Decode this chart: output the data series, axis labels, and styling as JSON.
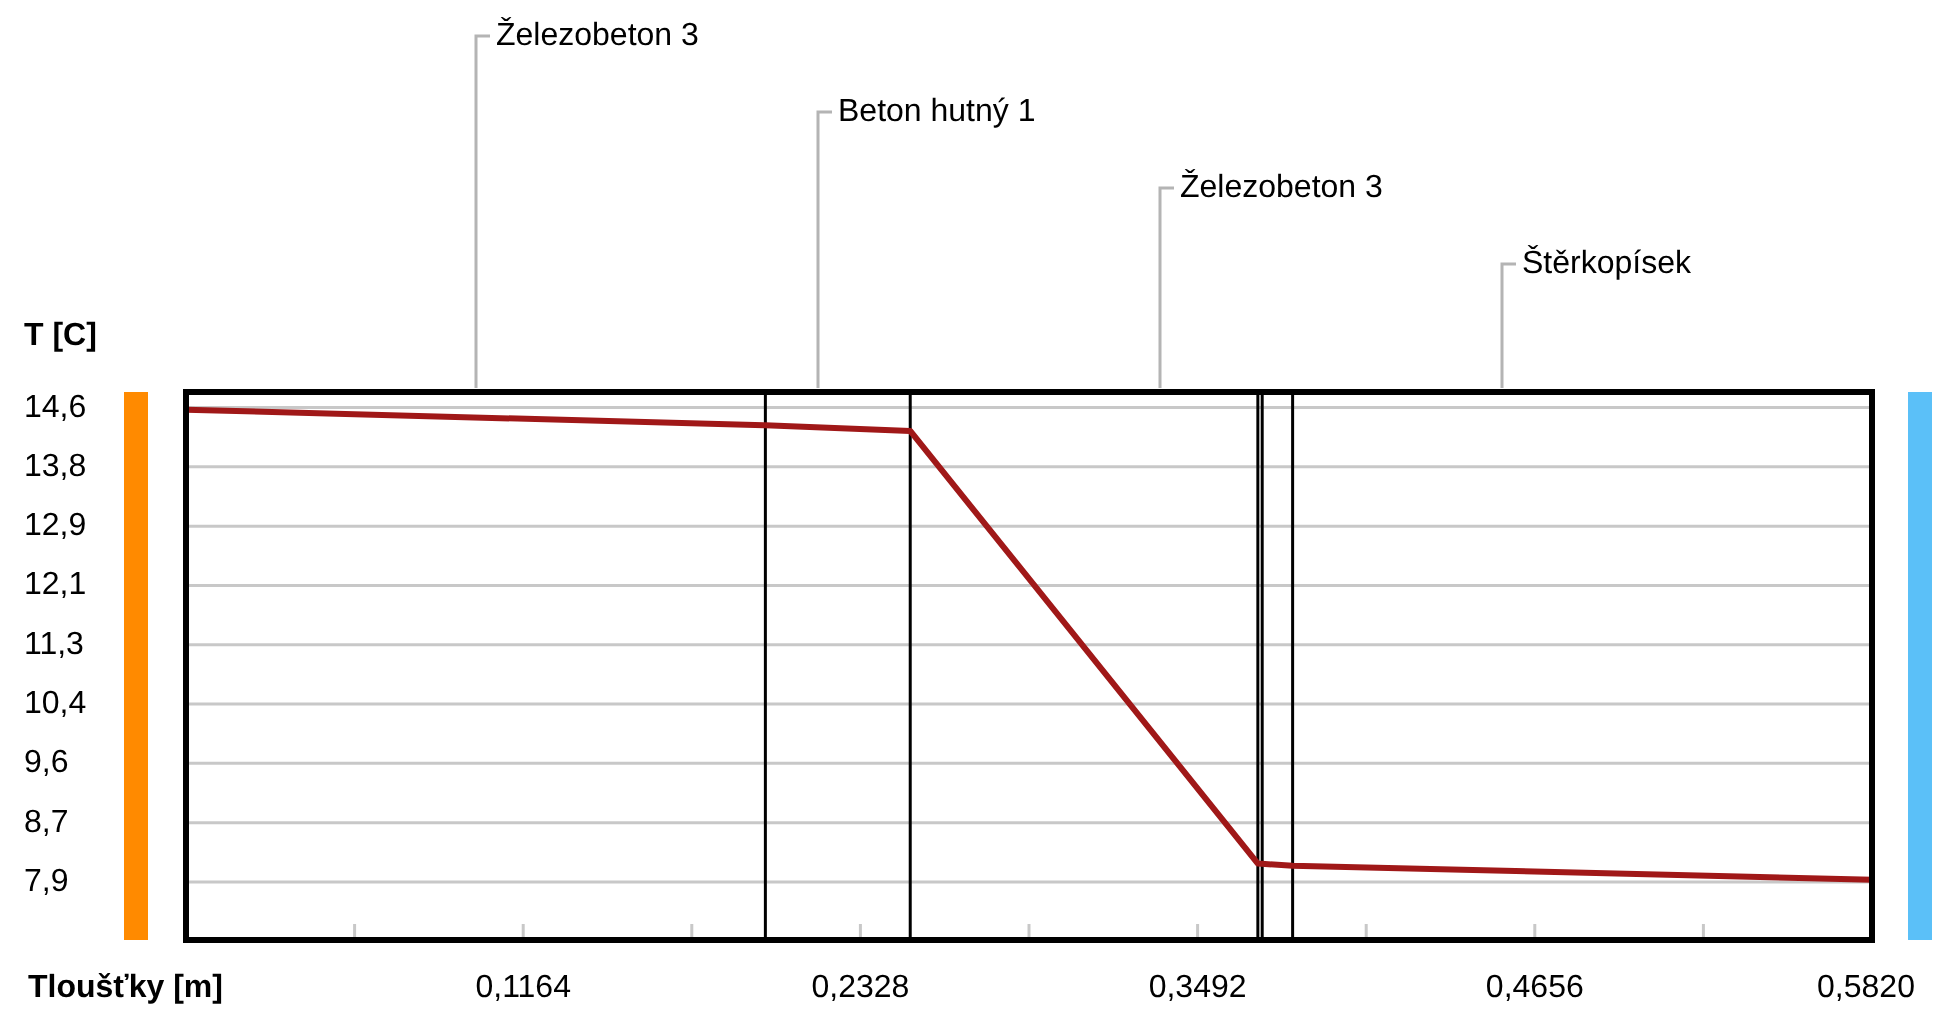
{
  "chart_data": {
    "type": "line",
    "ylabel": "T [C]",
    "xlabel": "Tloušťky [m]",
    "x": [
      0,
      0.2,
      0.25,
      0.37,
      0.382,
      0.582
    ],
    "series": [
      {
        "color": "#a01818",
        "values": [
          14.57,
          14.35,
          14.27,
          8.16,
          8.13,
          7.93
        ]
      }
    ],
    "xlim": [
      0,
      0.582
    ],
    "xticks": [
      {
        "value": 0.0582,
        "label": null
      },
      {
        "value": 0.1164,
        "label": "0,1164"
      },
      {
        "value": 0.1746,
        "label": null
      },
      {
        "value": 0.2328,
        "label": "0,2328"
      },
      {
        "value": 0.291,
        "label": null
      },
      {
        "value": 0.3492,
        "label": "0,3492"
      },
      {
        "value": 0.4074,
        "label": null
      },
      {
        "value": 0.4656,
        "label": "0,4656"
      },
      {
        "value": 0.5238,
        "label": null
      },
      {
        "value": 0.582,
        "label": "0,5820"
      }
    ],
    "ylim": [
      7.08,
      14.82
    ],
    "yticks": [
      {
        "value": 7.9,
        "label": "7,9"
      },
      {
        "value": 8.7375,
        "label": "8,7"
      },
      {
        "value": 9.575,
        "label": "9,6"
      },
      {
        "value": 10.4125,
        "label": "10,4"
      },
      {
        "value": 11.25,
        "label": "11,3"
      },
      {
        "value": 12.0875,
        "label": "12,1"
      },
      {
        "value": 12.925,
        "label": "12,9"
      },
      {
        "value": 13.7625,
        "label": "13,8"
      },
      {
        "value": 14.6,
        "label": "14,6"
      }
    ],
    "grid": "y",
    "marker": "none",
    "line_style": "solid",
    "ref_lines": [
      {
        "axis": "x",
        "value": 0.2,
        "color": "#000000"
      },
      {
        "axis": "x",
        "value": 0.25,
        "color": "#000000"
      },
      {
        "axis": "x",
        "value": 0.37,
        "color": "#000000"
      },
      {
        "axis": "x",
        "value": 0.3715,
        "color": "#000000"
      },
      {
        "axis": "x",
        "value": 0.382,
        "color": "#000000"
      }
    ],
    "annotations": [
      "Železobeton 3",
      "Beton hutný 1",
      "Železobeton 3",
      "Štěrkopísek"
    ]
  }
}
